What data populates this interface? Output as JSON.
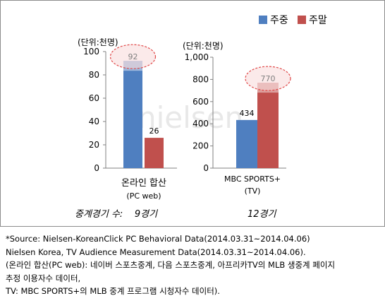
{
  "legend": [
    {
      "label": "주중",
      "color": "#4f7fc0"
    },
    {
      "label": "주말",
      "color": "#c0504d"
    }
  ],
  "watermark": "nielsen",
  "chart_data": [
    {
      "type": "bar",
      "unit_label": "(단위:천명)",
      "ylim": [
        0,
        100
      ],
      "yticks": [
        0,
        20,
        40,
        60,
        80,
        100
      ],
      "category_lines": [
        "온라인 합산",
        "(PC web)"
      ],
      "series": [
        {
          "name": "주중",
          "values": [
            92
          ],
          "color": "#4f7fc0"
        },
        {
          "name": "주말",
          "values": [
            26
          ],
          "color": "#c0504d"
        }
      ],
      "highlighted_value": 92,
      "footer": "중계경기 수:    9경기"
    },
    {
      "type": "bar",
      "unit_label": "(단위:천명)",
      "ylim": [
        0,
        1000
      ],
      "yticks": [
        "0",
        "200",
        "400",
        "600",
        "800",
        "1,000"
      ],
      "category_lines": [
        "MBC SPORTS+",
        "(TV)"
      ],
      "series": [
        {
          "name": "주중",
          "values": [
            434
          ],
          "color": "#4f7fc0"
        },
        {
          "name": "주말",
          "values": [
            770
          ],
          "color": "#c0504d"
        }
      ],
      "highlighted_value": 770,
      "footer": "12경기"
    }
  ],
  "notes": [
    "*Source: Nielsen-KoreanClick  PC Behavioral Data(2014.03.31~2014.04.06)",
    "Nielsen Korea, TV Audience Measurement Data(2014.03.31~2014.04.06).",
    "(온라인 합산(PC web): 네이버 스포츠중계, 다음 스포츠중계, 아프리카TV의 MLB 생중계 페이지",
    "추정 이용자수 데이터,",
    "TV: MBC SPORTS+의 MLB 중계 프로그램 시청자수 데이터)."
  ]
}
